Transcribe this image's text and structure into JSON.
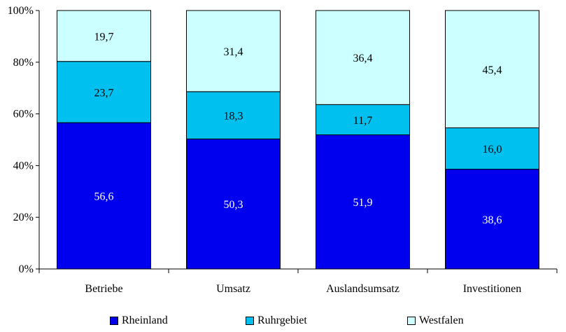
{
  "chart_data": {
    "type": "bar",
    "stacked": true,
    "percent": true,
    "categories": [
      "Betriebe",
      "Umsatz",
      "Auslandsumsatz",
      "Investitionen"
    ],
    "series": [
      {
        "name": "Rheinland",
        "color": "#0000ee",
        "label_color": "#ffffff",
        "values": [
          56.6,
          50.3,
          51.9,
          38.6
        ],
        "labels": [
          "56,6",
          "50,3",
          "51,9",
          "38,6"
        ]
      },
      {
        "name": "Ruhrgebiet",
        "color": "#00c0f0",
        "label_color": "#000000",
        "values": [
          23.7,
          18.3,
          11.7,
          16.0
        ],
        "labels": [
          "23,7",
          "18,3",
          "11,7",
          "16,0"
        ]
      },
      {
        "name": "Westfalen",
        "color": "#ccffff",
        "label_color": "#000000",
        "values": [
          19.7,
          31.4,
          36.4,
          45.4
        ],
        "labels": [
          "19,7",
          "31,4",
          "36,4",
          "45,4"
        ]
      }
    ],
    "y_ticks": [
      "0%",
      "20%",
      "40%",
      "60%",
      "80%",
      "100%"
    ],
    "ylim": [
      0,
      100
    ],
    "grid": false,
    "legend_position": "bottom"
  }
}
